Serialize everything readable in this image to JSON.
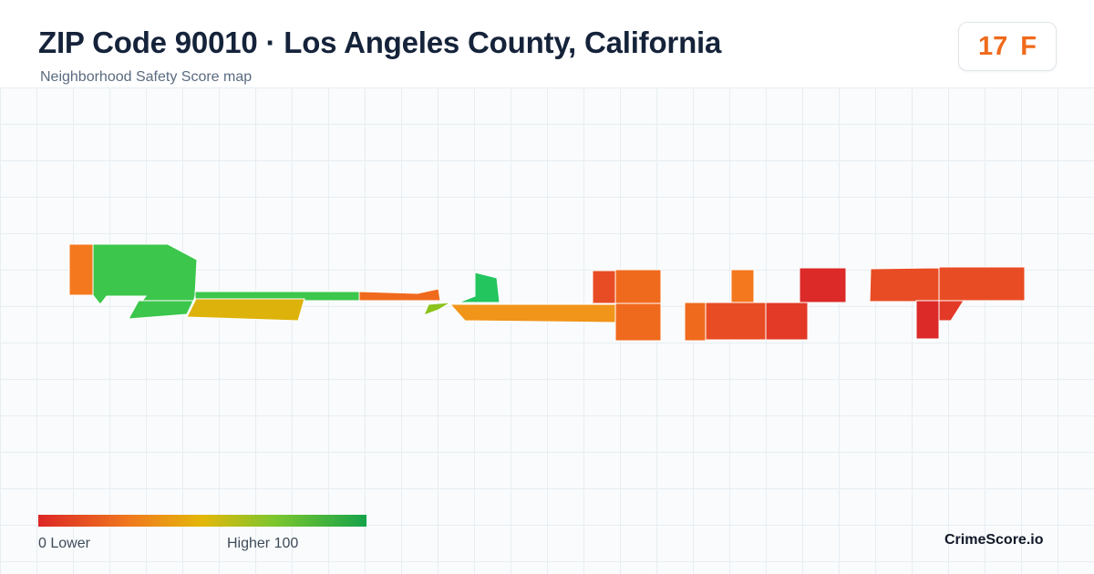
{
  "header": {
    "title": "ZIP Code 90010 · Los Angeles County, California",
    "subtitle": "Neighborhood Safety Score map"
  },
  "score": {
    "value": "17",
    "grade": "F",
    "color": "#ef6a1c"
  },
  "legend": {
    "min_label": "0  Lower",
    "max_label": "Higher  100",
    "min_value": 0,
    "max_value": 100,
    "color_low": "#dc2626",
    "color_high": "#16a34a"
  },
  "brand": "CrimeScore.io",
  "palette": {
    "green": "#3cc64b",
    "green_dark": "#22c55e",
    "yellow": "#ddb20a",
    "yellow_green": "#8ac31c",
    "orange": "#f4781e",
    "orange_dark": "#f06a1e",
    "amber": "#f0941a",
    "red_orange": "#e84c24",
    "red": "#db2a28"
  }
}
